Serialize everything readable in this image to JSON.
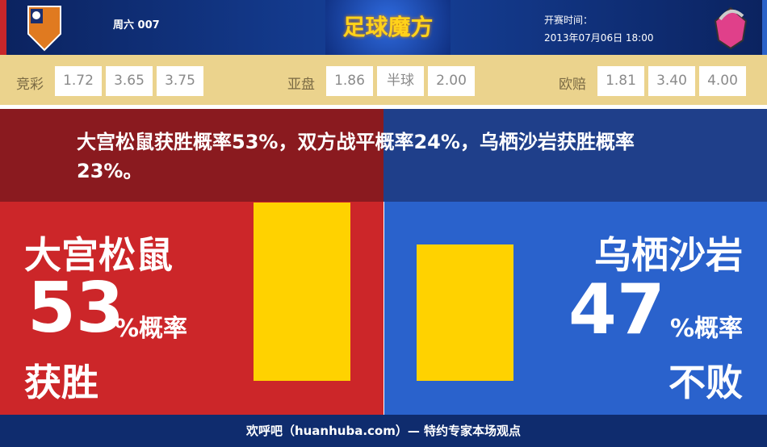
{
  "header": {
    "match_no": "周六 007",
    "brand": "足球魔方",
    "kickoff_label": "开赛时间：",
    "kickoff_time": "2013年07月06日 18:00"
  },
  "odds": {
    "jingcai": {
      "label": "竞彩",
      "values": [
        "1.72",
        "3.65",
        "3.75"
      ]
    },
    "yapan": {
      "label": "亚盘",
      "values": [
        "1.86",
        "半球",
        "2.00"
      ]
    },
    "oupei": {
      "label": "欧赔",
      "values": [
        "1.81",
        "3.40",
        "4.00"
      ]
    }
  },
  "summary": "大宫松鼠获胜概率53%，双方战平概率24%，乌栖沙岩获胜概率23%。",
  "home": {
    "name": "大宫松鼠",
    "pct": "53",
    "pct_suffix": "%概率",
    "result": "获胜",
    "bar_value": 53,
    "color": "#cc2629"
  },
  "away": {
    "name": "乌栖沙岩",
    "pct": "47",
    "pct_suffix": "%概率",
    "result": "不败",
    "bar_value": 47,
    "color": "#2a62cc"
  },
  "footer": "欢呼吧（huanhuba.com）— 特约专家本场观点"
}
